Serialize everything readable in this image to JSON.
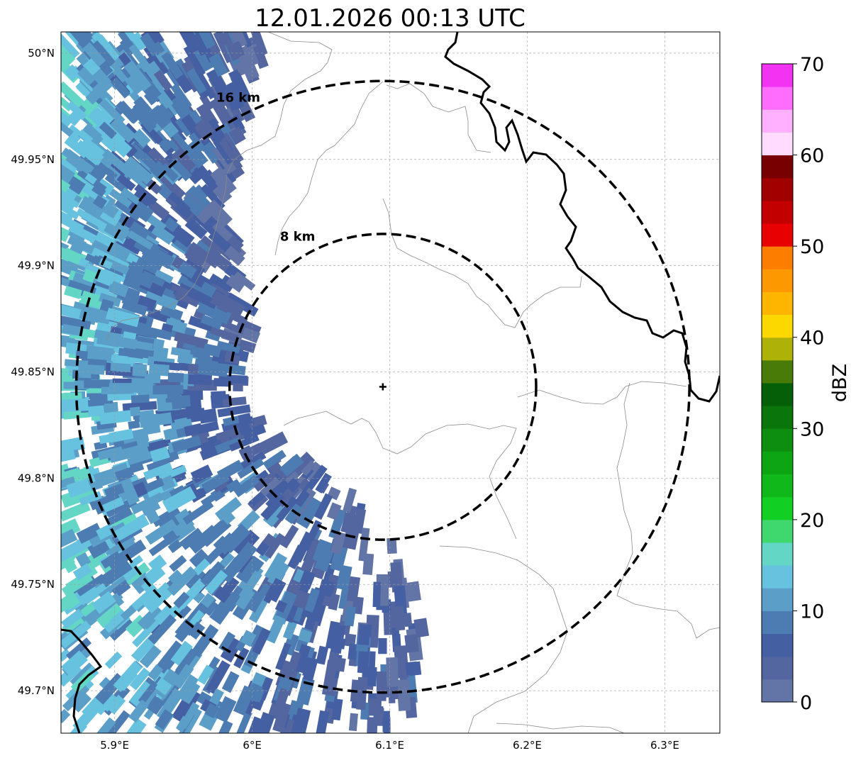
{
  "title": "12.01.2026 00:13 UTC",
  "map": {
    "extent": {
      "lon_min": 5.861,
      "lon_max": 6.34,
      "lat_min": 49.68,
      "lat_max": 50.01
    },
    "center": {
      "lon": 6.095,
      "lat": 49.843
    },
    "x_ticks": [
      {
        "value": 5.9,
        "label": "5.9°E"
      },
      {
        "value": 6.0,
        "label": "6°E"
      },
      {
        "value": 6.1,
        "label": "6.1°E"
      },
      {
        "value": 6.2,
        "label": "6.2°E"
      },
      {
        "value": 6.3,
        "label": "6.3°E"
      }
    ],
    "y_ticks": [
      {
        "value": 50.0,
        "label": "50°N"
      },
      {
        "value": 49.95,
        "label": "49.95°N"
      },
      {
        "value": 49.9,
        "label": "49.9°N"
      },
      {
        "value": 49.85,
        "label": "49.85°N"
      },
      {
        "value": 49.8,
        "label": "49.8°N"
      },
      {
        "value": 49.75,
        "label": "49.75°N"
      },
      {
        "value": 49.7,
        "label": "49.7°N"
      }
    ],
    "range_rings": [
      {
        "radius_km": 8,
        "label": "8 km"
      },
      {
        "radius_km": 16,
        "label": "16 km"
      }
    ],
    "grid": true
  },
  "colorbar": {
    "title": "dBZ",
    "min": 0,
    "max": 70,
    "step": 2.5,
    "ticks": [
      {
        "value": 0,
        "label": "0"
      },
      {
        "value": 10,
        "label": "10"
      },
      {
        "value": 20,
        "label": "20"
      },
      {
        "value": 30,
        "label": "30"
      },
      {
        "value": 40,
        "label": "40"
      },
      {
        "value": 50,
        "label": "50"
      },
      {
        "value": 60,
        "label": "60"
      },
      {
        "value": 70,
        "label": "70"
      }
    ],
    "colors": [
      "#6375a6",
      "#5466a0",
      "#4560a2",
      "#4d7cb2",
      "#5b9fc9",
      "#67c2df",
      "#63d6c6",
      "#3fd86e",
      "#12cf24",
      "#10b81a",
      "#0ea514",
      "#0e8e10",
      "#0a750a",
      "#055e08",
      "#487b07",
      "#adb108",
      "#fdd800",
      "#fdb500",
      "#fd9800",
      "#fd7d00",
      "#e80000",
      "#c30000",
      "#a10000",
      "#790000",
      "#ffdcff",
      "#ffb0ff",
      "#ff6dff",
      "#f233f2"
    ]
  },
  "radar_colors": [
    "#6375a6",
    "#5466a0",
    "#4560a2",
    "#4d7cb2",
    "#5b9fc9",
    "#67c2df",
    "#63d6c6"
  ]
}
